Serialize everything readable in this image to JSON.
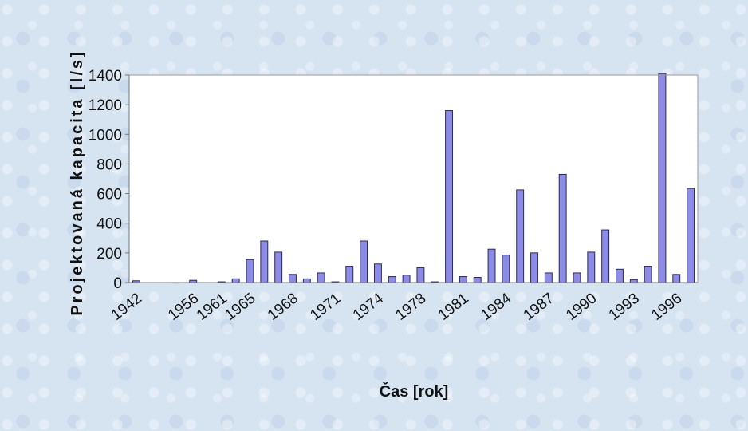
{
  "chart_data": {
    "type": "bar",
    "xlabel": "Čas [rok]",
    "ylabel": "Projektovaná kapacita [l/s]",
    "ylim": [
      0,
      1400
    ],
    "yticks": [
      0,
      200,
      400,
      600,
      800,
      1000,
      1200,
      1400
    ],
    "xtick_labels": [
      "1942",
      "1956",
      "1961",
      "1965",
      "1968",
      "1971",
      "1974",
      "1978",
      "1981",
      "1984",
      "1987",
      "1990",
      "1993",
      "1996"
    ],
    "xtick_label_indices": [
      0,
      4,
      6,
      8,
      11,
      14,
      17,
      20,
      23,
      26,
      29,
      32,
      35,
      38
    ],
    "values": [
      12,
      0,
      0,
      0,
      15,
      0,
      5,
      25,
      155,
      280,
      205,
      55,
      25,
      65,
      5,
      110,
      280,
      125,
      40,
      50,
      100,
      5,
      1160,
      40,
      35,
      225,
      185,
      625,
      200,
      65,
      730,
      65,
      205,
      355,
      90,
      20,
      110,
      1410,
      55,
      635
    ],
    "grid": false,
    "legend": "none",
    "bar_color": "#8c8ce6",
    "bar_edge_color": "#2a2a55"
  }
}
